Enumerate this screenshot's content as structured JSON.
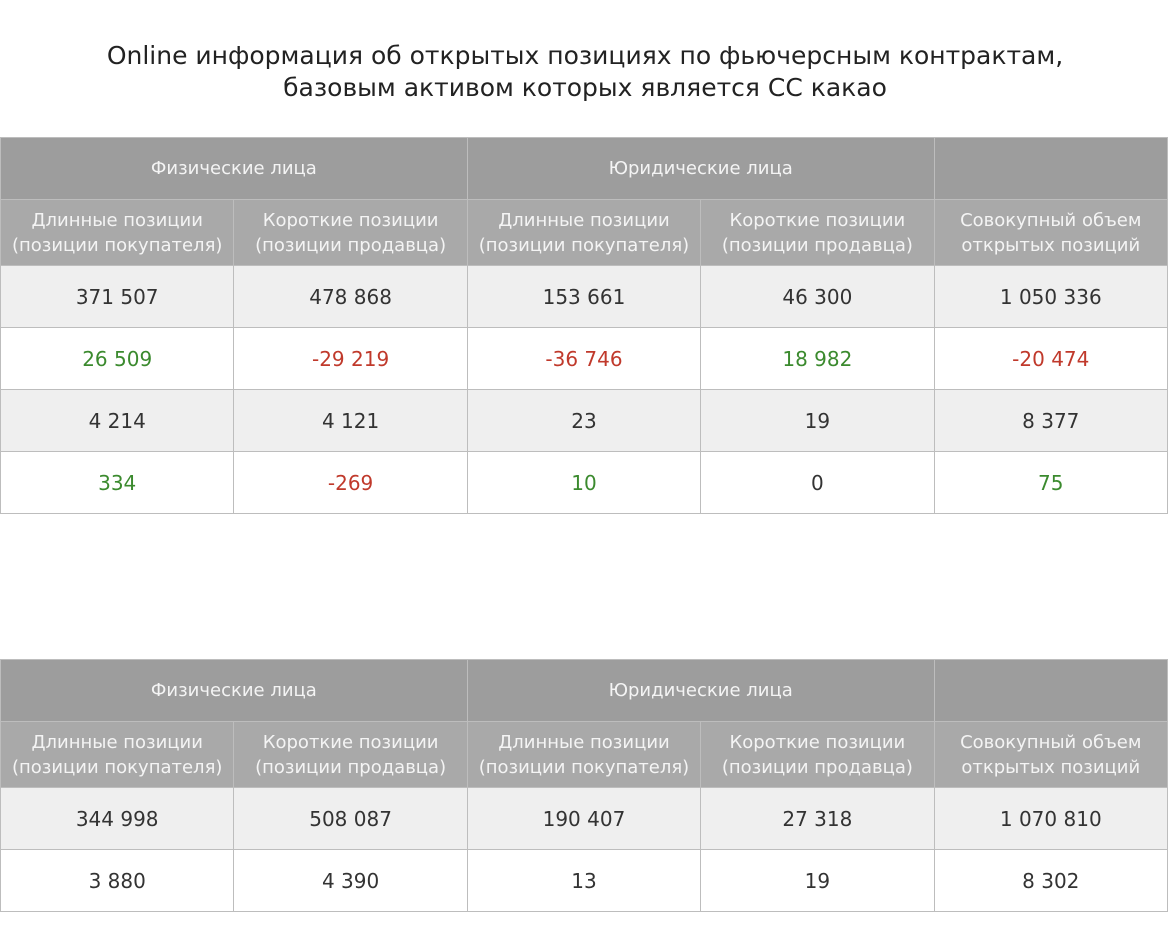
{
  "title": [
    "Online информация об открытых позициях по фьючерсным контрактам,",
    "базовым активом которых является СС какао"
  ],
  "tables": [
    {
      "groups": [
        "Физические лица",
        "Юридические лица"
      ],
      "columns": [
        [
          "Длинные позиции",
          "(позиции покупателя)"
        ],
        [
          "Короткие позиции",
          "(позиции продавца)"
        ],
        [
          "Длинные позиции",
          "(позиции покупателя)"
        ],
        [
          "Короткие позиции",
          "(позиции продавца)"
        ],
        [
          "Совокупный объем",
          "открытых позиций"
        ]
      ],
      "rows": [
        {
          "cells": [
            "371 507",
            "478 868",
            "153 661",
            "46 300",
            "1 050 336"
          ],
          "colors": [
            "#333333",
            "#333333",
            "#333333",
            "#333333",
            "#333333"
          ]
        },
        {
          "cells": [
            "26 509",
            "-29 219",
            "-36 746",
            "18 982",
            "-20 474"
          ],
          "colors": [
            "#3b8a2e",
            "#c0392b",
            "#c0392b",
            "#3b8a2e",
            "#c0392b"
          ]
        },
        {
          "cells": [
            "4 214",
            "4 121",
            "23",
            "19",
            "8 377"
          ],
          "colors": [
            "#333333",
            "#333333",
            "#333333",
            "#333333",
            "#333333"
          ]
        },
        {
          "cells": [
            "334",
            "-269",
            "10",
            "0",
            "75"
          ],
          "colors": [
            "#3b8a2e",
            "#c0392b",
            "#3b8a2e",
            "#333333",
            "#3b8a2e"
          ]
        }
      ]
    },
    {
      "groups": [
        "Физические лица",
        "Юридические лица"
      ],
      "columns": [
        [
          "Длинные позиции",
          "(позиции покупателя)"
        ],
        [
          "Короткие позиции",
          "(позиции продавца)"
        ],
        [
          "Длинные позиции",
          "(позиции покупателя)"
        ],
        [
          "Короткие позиции",
          "(позиции продавца)"
        ],
        [
          "Совокупный объем",
          "открытых позиций"
        ]
      ],
      "rows": [
        {
          "cells": [
            "344 998",
            "508 087",
            "190 407",
            "27 318",
            "1 070 810"
          ],
          "colors": [
            "#333333",
            "#333333",
            "#333333",
            "#333333",
            "#333333"
          ]
        },
        {
          "cells": [
            "3 880",
            "4 390",
            "13",
            "19",
            "8 302"
          ],
          "colors": [
            "#333333",
            "#333333",
            "#333333",
            "#333333",
            "#333333"
          ]
        }
      ]
    }
  ]
}
